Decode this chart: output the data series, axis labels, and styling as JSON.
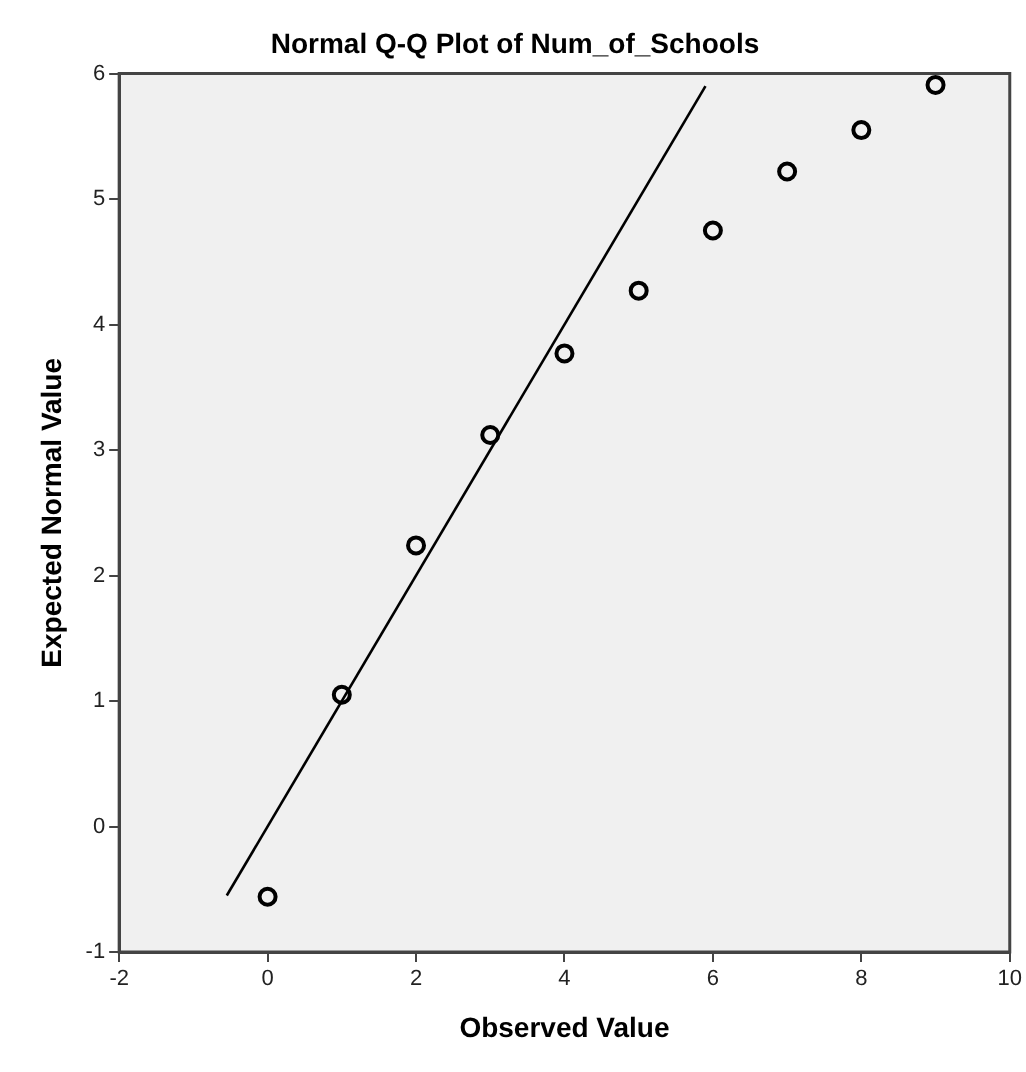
{
  "chart_data": {
    "type": "scatter",
    "title": "Normal Q-Q Plot of Num_of_Schools",
    "xlabel": "Observed Value",
    "ylabel": "Expected Normal Value",
    "xlim": [
      -2,
      10
    ],
    "xticks": [
      -2,
      0,
      2,
      4,
      6,
      8,
      10
    ],
    "ylim": [
      -1,
      6
    ],
    "yticks": [
      -1,
      0,
      1,
      2,
      3,
      4,
      5,
      6
    ],
    "grid": false,
    "legend": false,
    "marker": "circle",
    "series": [
      {
        "color": "#000000",
        "x": [
          0,
          1,
          2,
          3,
          4,
          5,
          6,
          7,
          8,
          9
        ],
        "values": [
          -0.56,
          1.05,
          2.24,
          3.12,
          3.77,
          4.27,
          4.75,
          5.22,
          5.55,
          5.91
        ]
      },
      {
        "type": "line",
        "color": "#000000",
        "x": [
          -0.55,
          5.9
        ],
        "values": [
          -0.55,
          5.9
        ],
        "marker": "none",
        "line_style": "solid"
      }
    ]
  }
}
